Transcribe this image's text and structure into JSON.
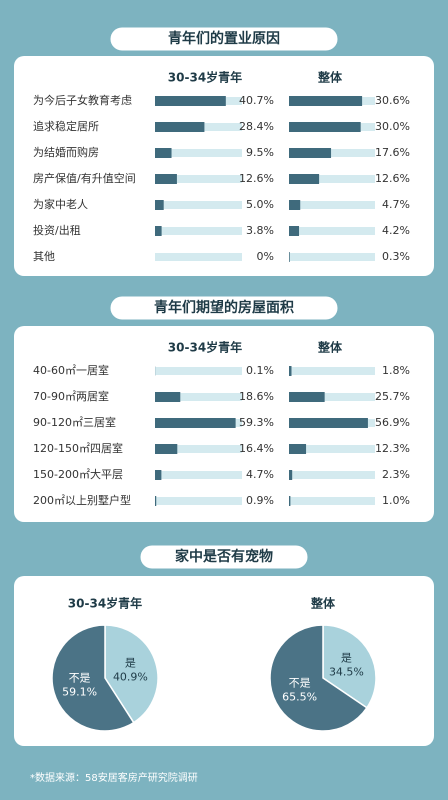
{
  "chart_data": [
    {
      "type": "bar",
      "title": "青年们的置业原因",
      "categories": [
        "为今后子女教育考虑",
        "追求稳定居所",
        "为结婚而购房",
        "房产保值/有升值空间",
        "为家中老人",
        "投资/出租",
        "其他"
      ],
      "series": [
        {
          "name": "30-34岁青年",
          "color": "#3f6a7c",
          "xlim": [
            0,
            50
          ],
          "values": [
            40.7,
            28.4,
            9.5,
            12.6,
            5.0,
            3.8,
            0
          ],
          "value_labels": [
            "40.7%",
            "28.4%",
            "9.5%",
            "12.6%",
            "5.0%",
            "3.8%",
            "0%"
          ]
        },
        {
          "name": "整体",
          "color": "#3f6a7c",
          "xlim": [
            0,
            36
          ],
          "values": [
            30.6,
            30.0,
            17.6,
            12.6,
            4.7,
            4.2,
            0.3
          ],
          "value_labels": [
            "30.6%",
            "30.0%",
            "17.6%",
            "12.6%",
            "4.7%",
            "4.2%",
            "0.3%"
          ]
        }
      ]
    },
    {
      "type": "bar",
      "title": "青年们期望的房屋面积",
      "categories": [
        "40-60㎡一居室",
        "70-90㎡两居室",
        "90-120㎡三居室",
        "120-150㎡四居室",
        "150-200㎡大平层",
        "200㎡以上别墅户型"
      ],
      "series": [
        {
          "name": "30-34岁青年",
          "color": "#3f6a7c",
          "xlim": [
            0,
            64
          ],
          "values": [
            0.1,
            18.6,
            59.3,
            16.4,
            4.7,
            0.9
          ],
          "value_labels": [
            "0.1%",
            "18.6%",
            "59.3%",
            "16.4%",
            "4.7%",
            "0.9%"
          ]
        },
        {
          "name": "整体",
          "color": "#3f6a7c",
          "xlim": [
            0,
            62
          ],
          "values": [
            1.8,
            25.7,
            56.9,
            12.3,
            2.3,
            1.0
          ],
          "value_labels": [
            "1.8%",
            "25.7%",
            "56.9%",
            "12.3%",
            "2.3%",
            "1.0%"
          ]
        }
      ]
    },
    {
      "type": "pie",
      "title": "家中是否有宠物",
      "categories": [
        "是",
        "不是"
      ],
      "colors": [
        "#a9d2dc",
        "#4b7386"
      ],
      "series": [
        {
          "name": "30-34岁青年",
          "values": [
            40.9,
            59.1
          ],
          "value_labels": [
            "40.9%",
            "59.1%"
          ]
        },
        {
          "name": "整体",
          "values": [
            34.5,
            65.5
          ],
          "value_labels": [
            "34.5%",
            "65.5%"
          ]
        }
      ]
    }
  ],
  "footer": "*数据来源：58安居客房产研究院调研"
}
